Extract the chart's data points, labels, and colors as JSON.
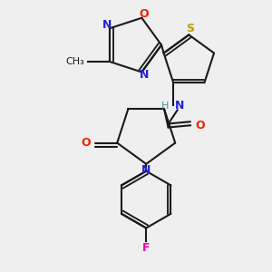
{
  "bg_color": "#efefef",
  "bond_color": "#1a1a1a",
  "bond_width": 1.5,
  "dbo": 0.012,
  "fs": 9,
  "sfs": 8,
  "colors": {
    "N": "#2222dd",
    "O": "#ee2200",
    "S": "#b8a000",
    "H": "#4a9090",
    "F": "#ee00aa",
    "C": "#1a1a1a"
  }
}
